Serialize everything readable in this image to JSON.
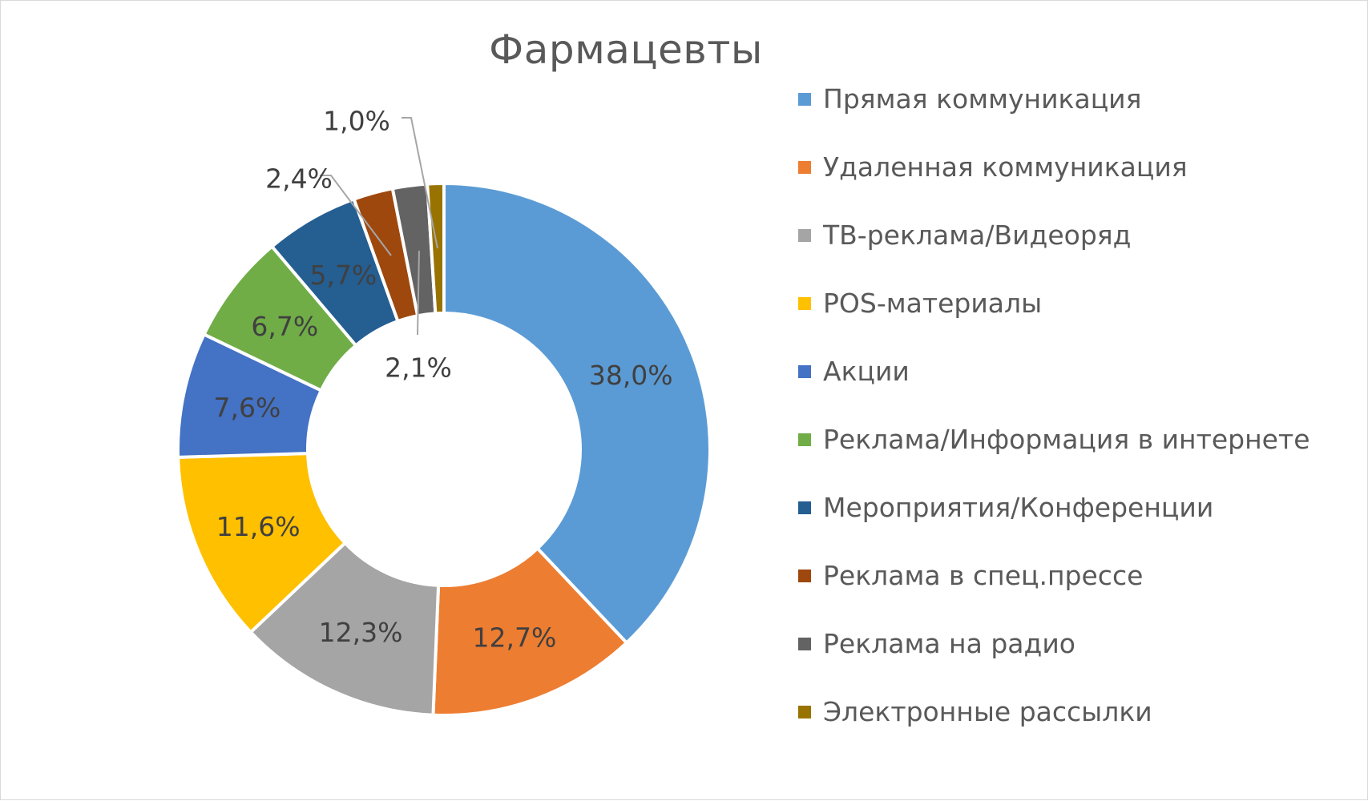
{
  "chart_data": {
    "type": "pie",
    "variant": "donut",
    "title": "Фармацевты",
    "legend_position": "right",
    "categories": [
      "Прямая коммуникация",
      "Удаленная коммуникация",
      "ТВ-реклама/Видеоряд",
      "POS-материалы",
      "Акции",
      "Реклама/Информация в интернете",
      "Мероприятия/Конференции",
      "Реклама в спец.прессе",
      "Реклама на радио",
      "Электронные рассылки"
    ],
    "values": [
      38.0,
      12.7,
      12.3,
      11.6,
      7.6,
      6.7,
      5.7,
      2.4,
      2.1,
      1.0
    ],
    "data_labels": [
      "38,0%",
      "12,7%",
      "12,3%",
      "11,6%",
      "7,6%",
      "6,7%",
      "5,7%",
      "2,4%",
      "2,1%",
      "1,0%"
    ],
    "colors": [
      "#5B9BD5",
      "#ED7D31",
      "#A5A5A5",
      "#FFC000",
      "#4472C4",
      "#70AD47",
      "#255E91",
      "#9E480E",
      "#636363",
      "#997300"
    ]
  }
}
